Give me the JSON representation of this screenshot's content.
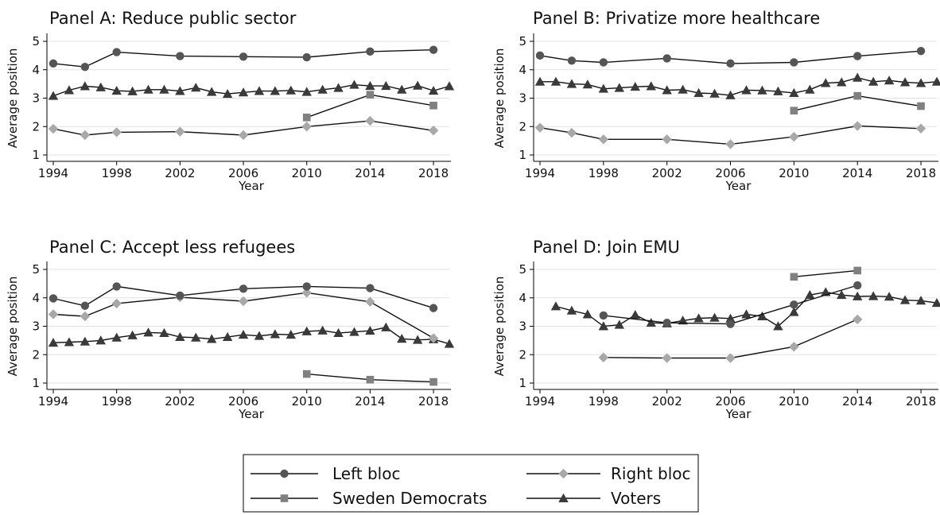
{
  "chart_data": [
    {
      "type": "line",
      "title": "Panel A: Reduce public sector",
      "xlabel": "Year",
      "ylabel": "Average position",
      "xlim": [
        1994,
        2019
      ],
      "ylim": [
        1,
        5
      ],
      "xticks": [
        1994,
        1998,
        2002,
        2006,
        2010,
        2014,
        2018
      ],
      "yticks": [
        1,
        2,
        3,
        4,
        5
      ],
      "grid": true,
      "series": [
        {
          "name": "Left bloc",
          "x": [
            1994,
            1996,
            1998,
            2002,
            2006,
            2010,
            2014,
            2018
          ],
          "y": [
            4.22,
            4.1,
            4.62,
            4.48,
            4.46,
            4.44,
            4.64,
            4.7
          ]
        },
        {
          "name": "Right bloc",
          "x": [
            1994,
            1996,
            1998,
            2002,
            2006,
            2010,
            2014,
            2018
          ],
          "y": [
            1.92,
            1.7,
            1.8,
            1.82,
            1.7,
            2.0,
            2.2,
            1.86
          ]
        },
        {
          "name": "Sweden Democrats",
          "x": [
            2010,
            2014,
            2018
          ],
          "y": [
            2.32,
            3.12,
            2.74
          ]
        },
        {
          "name": "Voters",
          "x": [
            1994,
            1995,
            1996,
            1997,
            1998,
            1999,
            2000,
            2001,
            2002,
            2003,
            2004,
            2005,
            2006,
            2007,
            2008,
            2009,
            2010,
            2011,
            2012,
            2013,
            2014,
            2015,
            2016,
            2017,
            2018,
            2019
          ],
          "y": [
            3.08,
            3.28,
            3.42,
            3.38,
            3.26,
            3.24,
            3.3,
            3.3,
            3.25,
            3.37,
            3.22,
            3.15,
            3.2,
            3.25,
            3.25,
            3.27,
            3.22,
            3.3,
            3.36,
            3.47,
            3.43,
            3.43,
            3.3,
            3.44,
            3.26,
            3.42
          ]
        }
      ]
    },
    {
      "type": "line",
      "title": "Panel B: Privatize more healthcare",
      "xlabel": "Year",
      "ylabel": "Average position",
      "xlim": [
        1994,
        2019
      ],
      "ylim": [
        1,
        5
      ],
      "xticks": [
        1994,
        1998,
        2002,
        2006,
        2010,
        2014,
        2018
      ],
      "yticks": [
        1,
        2,
        3,
        4,
        5
      ],
      "grid": true,
      "series": [
        {
          "name": "Left bloc",
          "x": [
            1994,
            1996,
            1998,
            2002,
            2006,
            2010,
            2014,
            2018
          ],
          "y": [
            4.5,
            4.32,
            4.26,
            4.4,
            4.22,
            4.26,
            4.48,
            4.66
          ]
        },
        {
          "name": "Right bloc",
          "x": [
            1994,
            1996,
            1998,
            2002,
            2006,
            2010,
            2014,
            2018
          ],
          "y": [
            1.96,
            1.78,
            1.55,
            1.55,
            1.38,
            1.64,
            2.02,
            1.93
          ]
        },
        {
          "name": "Sweden Democrats",
          "x": [
            2010,
            2014,
            2018
          ],
          "y": [
            2.56,
            3.08,
            2.72
          ]
        },
        {
          "name": "Voters",
          "x": [
            1994,
            1995,
            1996,
            1997,
            1998,
            1999,
            2000,
            2001,
            2002,
            2003,
            2004,
            2005,
            2006,
            2007,
            2008,
            2009,
            2010,
            2011,
            2012,
            2013,
            2014,
            2015,
            2016,
            2017,
            2018,
            2019
          ],
          "y": [
            3.58,
            3.58,
            3.5,
            3.48,
            3.33,
            3.36,
            3.4,
            3.42,
            3.28,
            3.3,
            3.18,
            3.16,
            3.1,
            3.28,
            3.27,
            3.24,
            3.18,
            3.3,
            3.53,
            3.56,
            3.72,
            3.58,
            3.62,
            3.56,
            3.53,
            3.58
          ]
        }
      ]
    },
    {
      "type": "line",
      "title": "Panel C: Accept less refugees",
      "xlabel": "Year",
      "ylabel": "Average position",
      "xlim": [
        1994,
        2019
      ],
      "ylim": [
        1,
        5
      ],
      "xticks": [
        1994,
        1998,
        2002,
        2006,
        2010,
        2014,
        2018
      ],
      "yticks": [
        1,
        2,
        3,
        4,
        5
      ],
      "grid": true,
      "series": [
        {
          "name": "Left bloc",
          "x": [
            1994,
            1996,
            1998,
            2002,
            2006,
            2010,
            2014,
            2018
          ],
          "y": [
            3.98,
            3.72,
            4.4,
            4.08,
            4.32,
            4.4,
            4.34,
            3.64
          ]
        },
        {
          "name": "Right bloc",
          "x": [
            1994,
            1996,
            1998,
            2002,
            2006,
            2010,
            2014,
            2018
          ],
          "y": [
            3.42,
            3.35,
            3.8,
            4.02,
            3.88,
            4.18,
            3.86,
            2.58
          ]
        },
        {
          "name": "Sweden Democrats",
          "x": [
            2010,
            2014,
            2018
          ],
          "y": [
            1.32,
            1.12,
            1.04
          ]
        },
        {
          "name": "Voters",
          "x": [
            1994,
            1995,
            1996,
            1997,
            1998,
            1999,
            2000,
            2001,
            2002,
            2003,
            2004,
            2005,
            2006,
            2007,
            2008,
            2009,
            2010,
            2011,
            2012,
            2013,
            2014,
            2015,
            2016,
            2017,
            2018,
            2019
          ],
          "y": [
            2.42,
            2.44,
            2.46,
            2.5,
            2.6,
            2.68,
            2.78,
            2.76,
            2.62,
            2.6,
            2.55,
            2.62,
            2.7,
            2.66,
            2.72,
            2.7,
            2.82,
            2.85,
            2.76,
            2.8,
            2.84,
            2.96,
            2.56,
            2.52,
            2.54,
            2.38
          ]
        }
      ]
    },
    {
      "type": "line",
      "title": "Panel D: Join EMU",
      "xlabel": "Year",
      "ylabel": "Average position",
      "xlim": [
        1994,
        2019
      ],
      "ylim": [
        1,
        5
      ],
      "xticks": [
        1994,
        1998,
        2002,
        2006,
        2010,
        2014,
        2018
      ],
      "yticks": [
        1,
        2,
        3,
        4,
        5
      ],
      "grid": true,
      "series": [
        {
          "name": "Left bloc",
          "x": [
            1998,
            2002,
            2006,
            2010,
            2014
          ],
          "y": [
            3.38,
            3.12,
            3.08,
            3.76,
            4.44
          ]
        },
        {
          "name": "Right bloc",
          "x": [
            1998,
            2002,
            2006,
            2010,
            2014
          ],
          "y": [
            1.9,
            1.88,
            1.88,
            2.28,
            3.24
          ]
        },
        {
          "name": "Sweden Democrats",
          "x": [
            2010,
            2014
          ],
          "y": [
            4.74,
            4.96
          ]
        },
        {
          "name": "Voters",
          "x": [
            1995,
            1996,
            1997,
            1998,
            1999,
            2000,
            2001,
            2002,
            2003,
            2004,
            2005,
            2006,
            2007,
            2008,
            2009,
            2010,
            2011,
            2012,
            2013,
            2014,
            2015,
            2016,
            2017,
            2018,
            2019
          ],
          "y": [
            3.7,
            3.55,
            3.42,
            3.0,
            3.05,
            3.4,
            3.12,
            3.1,
            3.2,
            3.28,
            3.3,
            3.27,
            3.42,
            3.35,
            3.0,
            3.5,
            4.1,
            4.2,
            4.1,
            4.05,
            4.06,
            4.04,
            3.92,
            3.9,
            3.82
          ]
        }
      ]
    }
  ],
  "legend": {
    "placement": "bottom-center",
    "items": [
      {
        "label": "Left bloc",
        "marker": "circle",
        "color": "#555555"
      },
      {
        "label": "Right bloc",
        "marker": "diamond",
        "color": "#a8a8a8"
      },
      {
        "label": "Sweden Democrats",
        "marker": "square",
        "color": "#808080"
      },
      {
        "label": "Voters",
        "marker": "triangle",
        "color": "#3a3a3a"
      }
    ]
  },
  "markers": {
    "Left bloc": {
      "shape": "circle",
      "color": "#555555"
    },
    "Right bloc": {
      "shape": "diamond",
      "color": "#a8a8a8"
    },
    "Sweden Democrats": {
      "shape": "square",
      "color": "#808080"
    },
    "Voters": {
      "shape": "triangle",
      "color": "#3a3a3a"
    }
  }
}
